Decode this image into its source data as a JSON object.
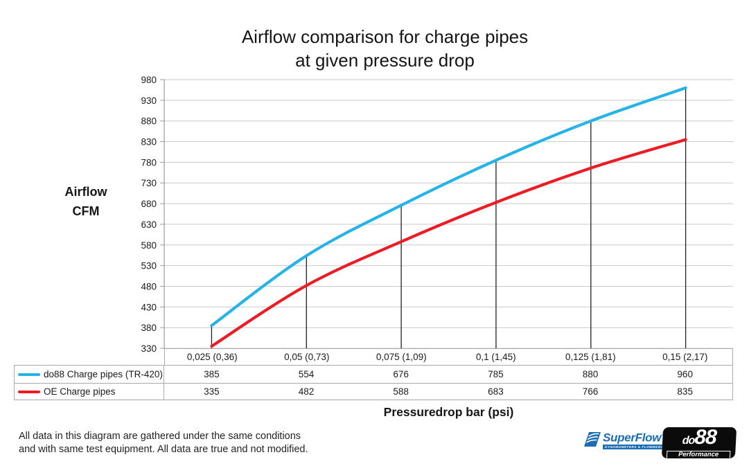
{
  "title": {
    "line1": "Airflow comparison for charge pipes",
    "line2": "at given pressure drop"
  },
  "y_axis_title": {
    "line1": "Airflow",
    "line2": "CFM"
  },
  "x_axis_title": "Pressuredrop bar (psi)",
  "footer": {
    "line1": "All data in this diagram are gathered under the same conditions",
    "line2": "and with same test equipment. All data are true and not modified.",
    "text_color": "#222222"
  },
  "logos": {
    "superflow": {
      "name": "SuperFlow",
      "trademark": "™",
      "tagline": "DYNAMOMETERS & FLOWBENCHES",
      "brand_color": "#1a6db3"
    },
    "do88": {
      "name_prefix": "do",
      "name_number": "88",
      "sub_label": "Performance"
    }
  },
  "chart_data": {
    "type": "line",
    "title": "Airflow comparison for charge pipes at given pressure drop",
    "xlabel": "Pressuredrop bar (psi)",
    "ylabel": "Airflow CFM",
    "categories": [
      "0,025 (0,36)",
      "0,05 (0,73)",
      "0,075 (1,09)",
      "0,1 (1,45)",
      "0,125 (1,81)",
      "0,15 (2,17)"
    ],
    "series": [
      {
        "name": "do88 Charge pipes (TR-420)",
        "color": "#26b3e8",
        "values": [
          385,
          554,
          676,
          785,
          880,
          960
        ]
      },
      {
        "name": "OE Charge pipes",
        "color": "#ec1b24",
        "values": [
          335,
          482,
          588,
          683,
          766,
          835
        ]
      }
    ],
    "ylim": [
      330,
      980
    ],
    "ytick_step": 50,
    "grid": true,
    "smooth": true,
    "drop_lines": true,
    "legend_position": "table-left",
    "colors": {
      "gridline": "#c9c9c9",
      "axis": "#9b9b9b",
      "drop_line": "#1f1f1f",
      "tick_label": "#1a1a1a"
    }
  }
}
